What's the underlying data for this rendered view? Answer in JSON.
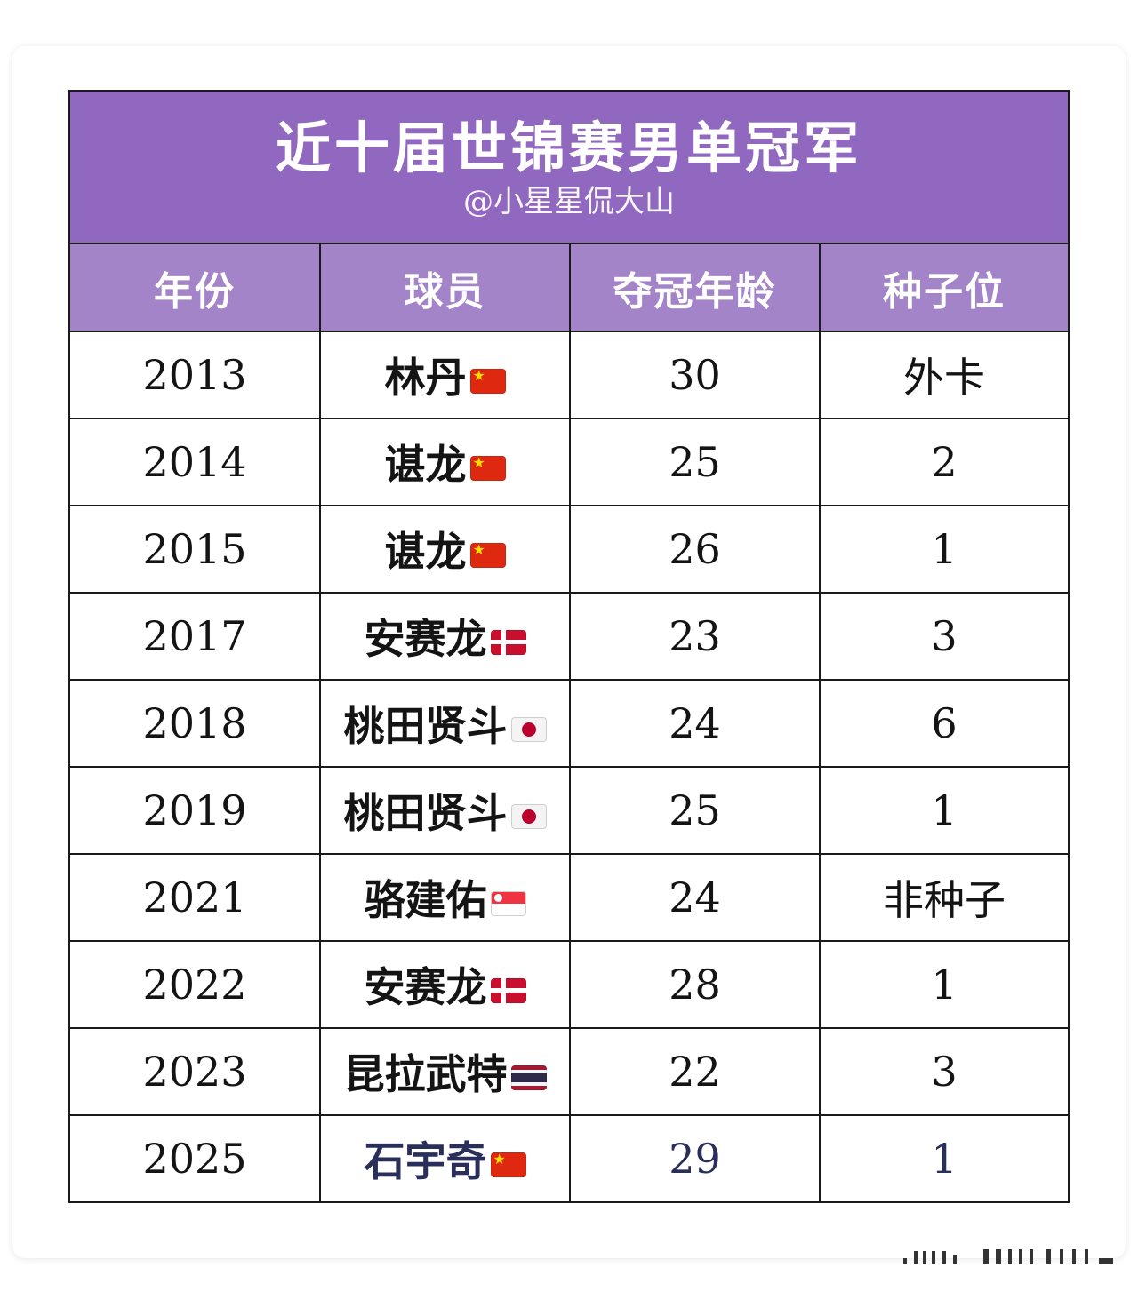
{
  "header": {
    "title": "近十届世锦赛男单冠军",
    "subtitle": "@小星星侃大山"
  },
  "table": {
    "columns": [
      "年份",
      "球员",
      "夺冠年龄",
      "种子位"
    ],
    "rows": [
      {
        "year": "2013",
        "player": "林丹",
        "flag": "china-flag-icon",
        "age": "30",
        "seed": "外卡"
      },
      {
        "year": "2014",
        "player": "谌龙",
        "flag": "china-flag-icon",
        "age": "25",
        "seed": "2"
      },
      {
        "year": "2015",
        "player": "谌龙",
        "flag": "china-flag-icon",
        "age": "26",
        "seed": "1"
      },
      {
        "year": "2017",
        "player": "安赛龙",
        "flag": "denmark-flag-icon",
        "age": "23",
        "seed": "3"
      },
      {
        "year": "2018",
        "player": "桃田贤斗",
        "flag": "japan-flag-icon",
        "age": "24",
        "seed": "6"
      },
      {
        "year": "2019",
        "player": "桃田贤斗",
        "flag": "japan-flag-icon",
        "age": "25",
        "seed": "1"
      },
      {
        "year": "2021",
        "player": "骆建佑",
        "flag": "singapore-flag-icon",
        "age": "24",
        "seed": "非种子"
      },
      {
        "year": "2022",
        "player": "安赛龙",
        "flag": "denmark-flag-icon",
        "age": "28",
        "seed": "1"
      },
      {
        "year": "2023",
        "player": "昆拉武特",
        "flag": "thailand-flag-icon",
        "age": "22",
        "seed": "3"
      },
      {
        "year": "2025",
        "player": "石宇奇",
        "flag": "china-flag-icon",
        "age": "29",
        "seed": "1"
      }
    ]
  },
  "colors": {
    "title_background": "#9168bf",
    "header_background": "#a484c9",
    "highlight_text": "#2a2f5a"
  }
}
